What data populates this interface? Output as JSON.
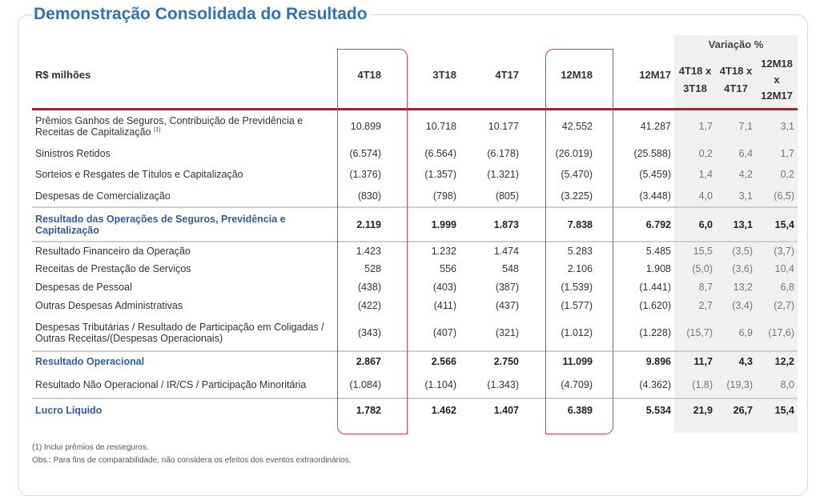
{
  "title": "Demonstração Consolidada do Resultado",
  "header": {
    "unit": "R$ milhões",
    "cols": [
      "4T18",
      "3T18",
      "4T17",
      "12M18",
      "12M17"
    ],
    "variation_label": "Variação %",
    "var_cols": [
      "4T18 x 3T18",
      "4T18 x 4T17",
      "12M18 x 12M17"
    ]
  },
  "rows": [
    {
      "label": "Prêmios Ganhos de Seguros, Contribuição de Previdência e Receitas de Capitalização",
      "note": "(1)",
      "values": [
        "10.899",
        "10.718",
        "10.177",
        "42.552",
        "41.287"
      ],
      "var": [
        "1,7",
        "7,1",
        "3,1"
      ]
    },
    {
      "label": "Sinistros Retidos",
      "values": [
        "(6.574)",
        "(6.564)",
        "(6.178)",
        "(26.019)",
        "(25.588)"
      ],
      "var": [
        "0,2",
        "6,4",
        "1,7"
      ]
    },
    {
      "label": "Sorteios e Resgates de Títulos e Capitalização",
      "values": [
        "(1.376)",
        "(1.357)",
        "(1.321)",
        "(5.470)",
        "(5.459)"
      ],
      "var": [
        "1,4",
        "4,2",
        "0,2"
      ]
    },
    {
      "label": "Despesas de Comercialização",
      "values": [
        "(830)",
        "(798)",
        "(805)",
        "(3.225)",
        "(3.448)"
      ],
      "var": [
        "4,0",
        "3,1",
        "(6,5)"
      ]
    },
    {
      "label": "Resultado das Operações de Seguros, Previdência e Capitalização",
      "values": [
        "2.119",
        "1.999",
        "1.873",
        "7.838",
        "6.792"
      ],
      "var": [
        "6,0",
        "13,1",
        "15,4"
      ]
    },
    {
      "label": "Resultado Financeiro da Operação",
      "values": [
        "1.423",
        "1.232",
        "1.474",
        "5.283",
        "5.485"
      ],
      "var": [
        "15,5",
        "(3,5)",
        "(3,7)"
      ]
    },
    {
      "label": "Receitas de Prestação de Serviços",
      "values": [
        "528",
        "556",
        "548",
        "2.106",
        "1.908"
      ],
      "var": [
        "(5,0)",
        "(3,6)",
        "10,4"
      ]
    },
    {
      "label": "Despesas de Pessoal",
      "values": [
        "(438)",
        "(403)",
        "(387)",
        "(1.539)",
        "(1.441)"
      ],
      "var": [
        "8,7",
        "13,2",
        "6,8"
      ]
    },
    {
      "label": "Outras Despesas Administrativas",
      "values": [
        "(422)",
        "(411)",
        "(437)",
        "(1.577)",
        "(1.620)"
      ],
      "var": [
        "2,7",
        "(3,4)",
        "(2,7)"
      ]
    },
    {
      "label": "Despesas Tributárias / Resultado de Participação em Coligadas / Outras Receitas/(Despesas Operacionais)",
      "values": [
        "(343)",
        "(407)",
        "(321)",
        "(1.012)",
        "(1.228)"
      ],
      "var": [
        "(15,7)",
        "6,9",
        "(17,6)"
      ]
    },
    {
      "label": "Resultado Operacional",
      "values": [
        "2.867",
        "2.566",
        "2.750",
        "11.099",
        "9.896"
      ],
      "var": [
        "11,7",
        "4,3",
        "12,2"
      ]
    },
    {
      "label": "Resultado Não Operacional / IR/CS / Participação Minoritária",
      "values": [
        "(1.084)",
        "(1.104)",
        "(1.343)",
        "(4.709)",
        "(4.362)"
      ],
      "var": [
        "(1,8)",
        "(19,3)",
        "8,0"
      ]
    },
    {
      "label": "Lucro Líquido",
      "values": [
        "1.782",
        "1.462",
        "1.407",
        "6.389",
        "5.534"
      ],
      "var": [
        "21,9",
        "26,7",
        "15,4"
      ]
    }
  ],
  "footnotes": [
    "(1) Inclui prêmios de resseguros.",
    "Obs.: Para fins de comparabilidade, não considera os efeitos dos eventos extraordinários."
  ]
}
